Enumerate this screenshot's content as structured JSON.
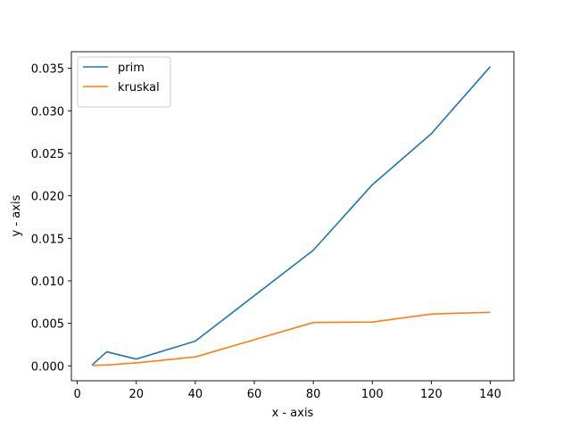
{
  "chart_data": {
    "type": "line",
    "title": "",
    "xlabel": "x - axis",
    "ylabel": "y - axis",
    "xlim": [
      -2,
      148
    ],
    "ylim": [
      -0.00175,
      0.03695
    ],
    "x_ticks": [
      0,
      20,
      40,
      60,
      80,
      100,
      120,
      140
    ],
    "x_tick_labels": [
      "0",
      "20",
      "40",
      "60",
      "80",
      "100",
      "120",
      "140"
    ],
    "y_ticks": [
      0.0,
      0.005,
      0.01,
      0.015,
      0.02,
      0.025,
      0.03,
      0.035
    ],
    "y_tick_labels": [
      "0.000",
      "0.005",
      "0.010",
      "0.015",
      "0.020",
      "0.025",
      "0.030",
      "0.035"
    ],
    "grid": false,
    "legend_position": "upper-left",
    "series": [
      {
        "name": "prim",
        "color": "#1f77b4",
        "x": [
          5,
          10,
          20,
          40,
          80,
          100,
          120,
          140
        ],
        "y": [
          0.0001,
          0.00165,
          0.0008,
          0.0029,
          0.0136,
          0.0213,
          0.0273,
          0.0352
        ]
      },
      {
        "name": "kruskal",
        "color": "#ff7f0e",
        "x": [
          5,
          10,
          20,
          40,
          80,
          100,
          120,
          140
        ],
        "y": [
          5e-05,
          0.0001,
          0.00035,
          0.00105,
          0.0051,
          0.00515,
          0.0061,
          0.0063
        ]
      }
    ]
  }
}
